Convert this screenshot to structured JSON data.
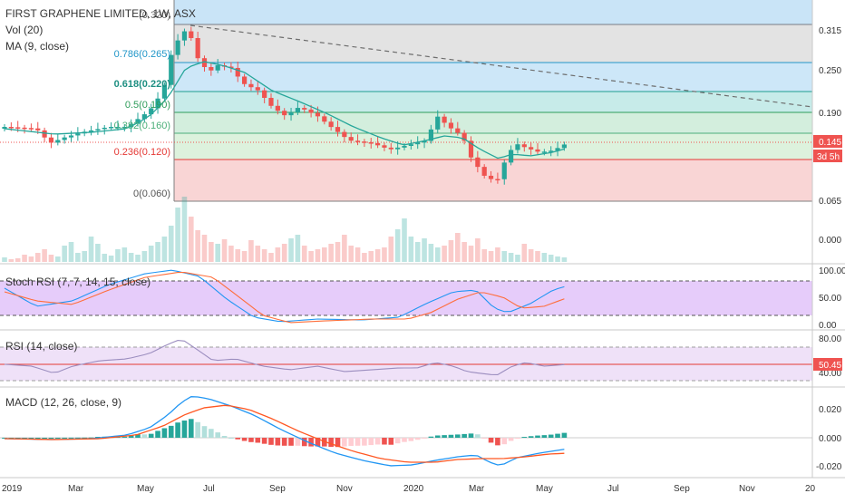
{
  "header": {
    "symbol_line": "FIRST GRAPHENE LIMITED, 1W, ASX",
    "vol_label": "Vol (20)",
    "ma_label": "MA (9, close)"
  },
  "price_scale": {
    "ticks": [
      "0.315",
      "0.250",
      "0.190",
      "0.145",
      "0.065",
      "0.000"
    ],
    "current_price": "0.145",
    "countdown": "3d 5h"
  },
  "fib_labels": [
    "0.236(0.120)",
    "0(0.060)",
    "0.618(0.220)",
    "0.786(0.265)",
    "(0.320)",
    "0.5(0.190)",
    "0.382(0.160)"
  ],
  "stoch_rsi": {
    "label": "Stoch RSI (7, 7, 14, 15, close)",
    "ticks": [
      "100.00",
      "50.00",
      "0.00"
    ]
  },
  "rsi": {
    "label": "RSI (14, close)",
    "ticks": [
      "80.00",
      "40.00"
    ],
    "value": "50.45"
  },
  "macd": {
    "label": "MACD (12, 26, close, 9)",
    "ticks": [
      "0.020",
      "0.000",
      "-0.020"
    ]
  },
  "time_axis": [
    "2019",
    "Mar",
    "May",
    "Jul",
    "Sep",
    "Nov",
    "2020",
    "Mar",
    "May",
    "Jul",
    "Sep",
    "Nov",
    "20"
  ],
  "colors": {
    "up": "#26a69a",
    "down": "#ef5350",
    "ma_line": "#2a9d8f",
    "fib_blue": "#c9e4f7",
    "fib_gray": "#e0e0e0",
    "fib_green": "#d9efd9",
    "fib_red": "#f9d3d3",
    "stoch_band": "#e9d1fb",
    "rsi_band": "#eee0f7",
    "price_tag": "#ef5350"
  },
  "chart_data": {
    "type": "candlestick",
    "title": "FIRST GRAPHENE LIMITED, 1W, ASX",
    "ylabel": "",
    "ylim": [
      0.04,
      0.335
    ],
    "log_scale": false,
    "grid": false,
    "legend": "top-left",
    "fib_levels": [
      {
        "ratio": "0",
        "price": 0.06
      },
      {
        "ratio": "0.236",
        "price": 0.12
      },
      {
        "ratio": "0.382",
        "price": 0.16
      },
      {
        "ratio": "0.5",
        "price": 0.19
      },
      {
        "ratio": "0.618",
        "price": 0.22
      },
      {
        "ratio": "0.786",
        "price": 0.265
      },
      {
        "ratio": "1",
        "price": 0.32
      }
    ],
    "current_price": 0.145
  }
}
